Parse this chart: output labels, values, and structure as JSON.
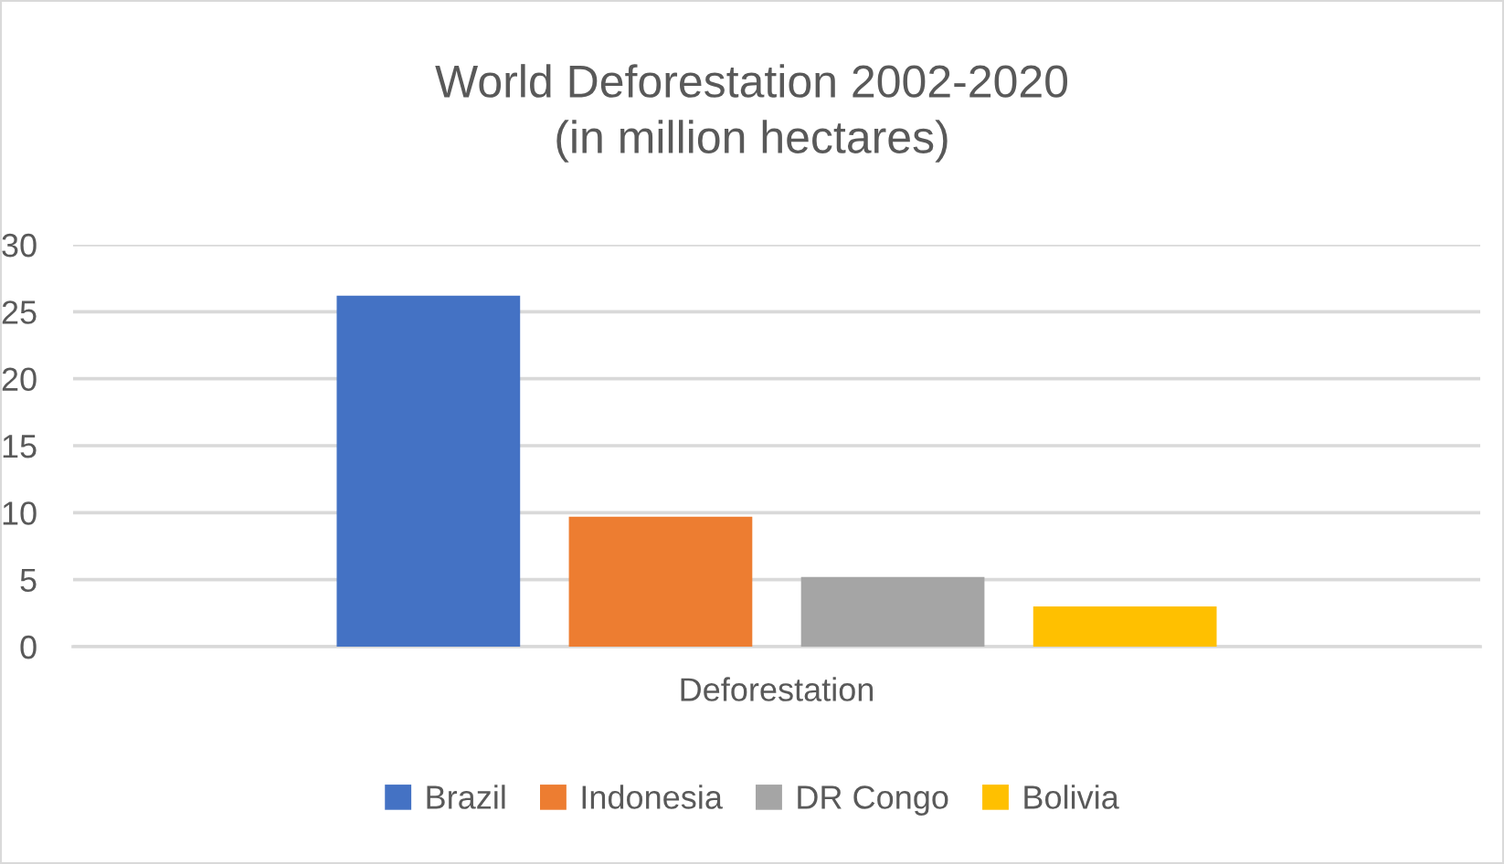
{
  "chart_data": {
    "type": "bar",
    "title": "World Deforestation 2002-2020\n(in million hectares)",
    "categories": [
      "Deforestation"
    ],
    "series": [
      {
        "name": "Brazil",
        "color": "#4472c4",
        "values": [
          26.2
        ]
      },
      {
        "name": "Indonesia",
        "color": "#ed7d31",
        "values": [
          9.7
        ]
      },
      {
        "name": "DR Congo",
        "color": "#a5a5a5",
        "values": [
          5.2
        ]
      },
      {
        "name": "Bolivia",
        "color": "#ffc000",
        "values": [
          3.0
        ]
      }
    ],
    "ylim": [
      0,
      30
    ],
    "yticks": [
      0,
      5,
      10,
      15,
      20,
      25,
      30
    ],
    "grid": "y",
    "legend": "bottom"
  }
}
